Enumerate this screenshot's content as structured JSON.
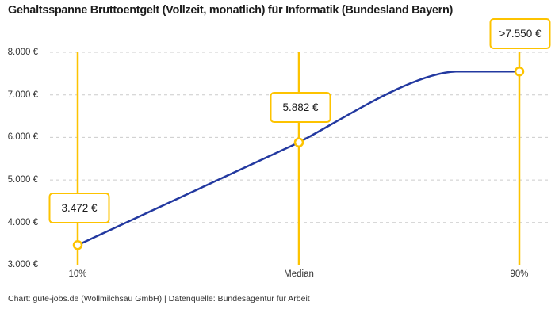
{
  "title": "Gehaltsspanne Bruttoentgelt (Vollzeit, monatlich) für Informatik (Bundesland Bayern)",
  "footer": {
    "text": "Chart: gute-jobs.de (Wollmilchsau GmbH) | Datenquelle: Bundesagentur für Arbeit"
  },
  "colors": {
    "accent_yellow": "#FDC300",
    "line_blue": "#2339A0",
    "grid_gray": "#CCCCCC",
    "background": "#FFFFFF",
    "title_text": "#1D1D1D",
    "axis_text": "#333333"
  },
  "chart_data": {
    "type": "line",
    "title": "Gehaltsspanne Bruttoentgelt (Vollzeit, monatlich) für Informatik (Bundesland Bayern)",
    "categories": [
      "10%",
      "Median",
      "90%"
    ],
    "values": [
      3472,
      5882,
      7550
    ],
    "point_labels": [
      "3.472 €",
      "5.882 €",
      ">7.550 €"
    ],
    "ylim": [
      3000,
      8000
    ],
    "ytick_values": [
      3000,
      4000,
      5000,
      6000,
      7000,
      8000
    ],
    "yticks": [
      "3.000 €",
      "4.000 €",
      "5.000 €",
      "6.000 €",
      "7.000 €",
      "8.000 €"
    ],
    "xlabel": "",
    "ylabel": "",
    "grid": "horizontal-dashed",
    "legend": "none",
    "marker_style": "open-circle-yellow",
    "vertical_guides_at_points": true,
    "curve_note": "straight from 10% to Median, then S-curve flattening horizontally before the 90% marker"
  }
}
